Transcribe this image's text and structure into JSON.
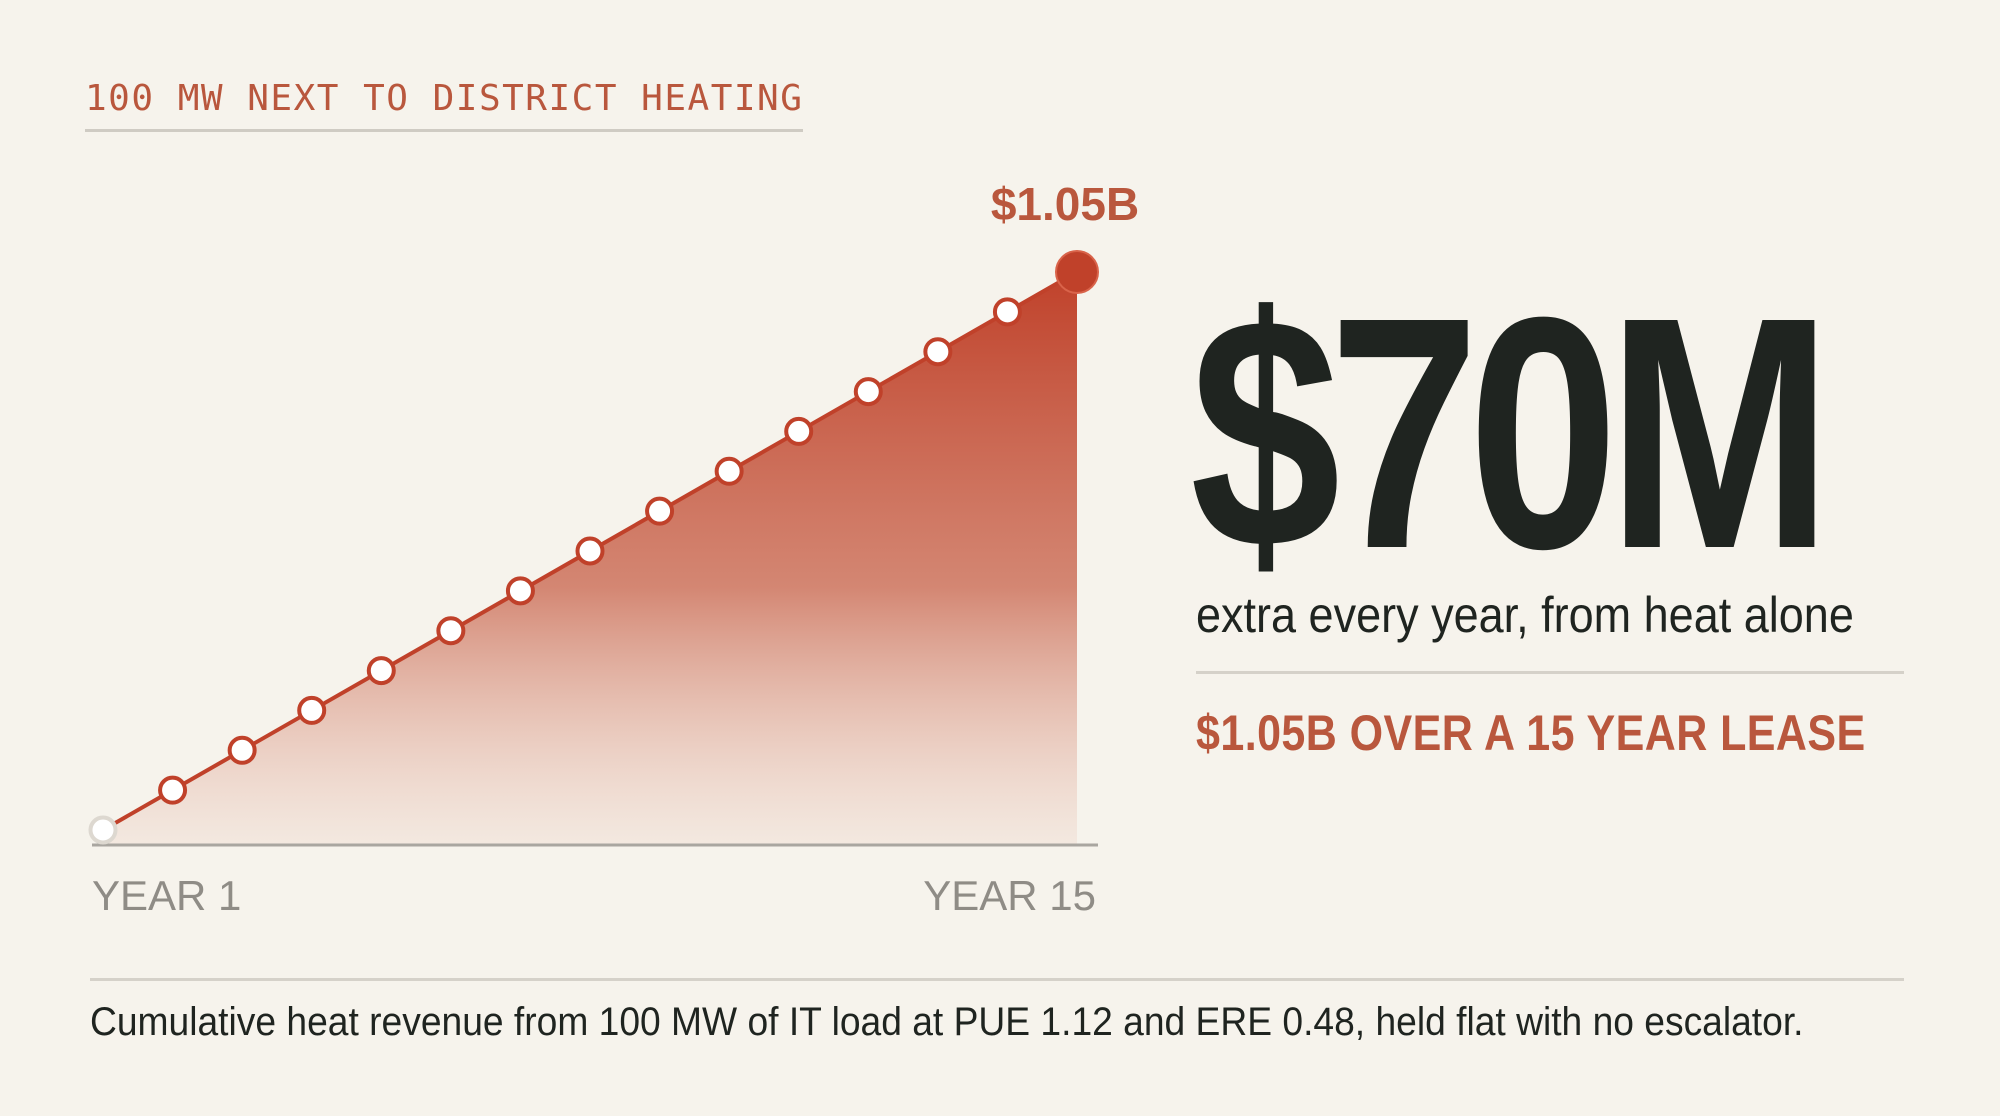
{
  "kicker": "100 MW NEXT TO DISTRICT HEATING",
  "headline": {
    "value": "$70M",
    "subtitle": "extra every year, from heat alone"
  },
  "lease_total": "$1.05B OVER A 15 YEAR LEASE",
  "caption": "Cumulative heat revenue from 100 MW of IT load at PUE 1.12 and ERE 0.48, held flat with no escalator.",
  "colors": {
    "accent": "#b9573d",
    "fill_top": "#c0412a",
    "text": "#1f2420",
    "axis": "#a9a6a0",
    "background": "#f6f3ec"
  },
  "chart_data": {
    "type": "area",
    "x": [
      1,
      2,
      3,
      4,
      5,
      6,
      7,
      8,
      9,
      10,
      11,
      12,
      13,
      14,
      15
    ],
    "unit": "$M",
    "series": [
      {
        "values": [
          70,
          140,
          210,
          280,
          350,
          420,
          490,
          560,
          630,
          700,
          770,
          840,
          910,
          980,
          1050
        ]
      }
    ],
    "x_tick_labels": [
      "YEAR 1",
      "YEAR 15"
    ],
    "end_label": "$1.05B",
    "ylim": [
      0,
      1050
    ],
    "grid": false,
    "markers": "hollow circles, final point filled"
  }
}
